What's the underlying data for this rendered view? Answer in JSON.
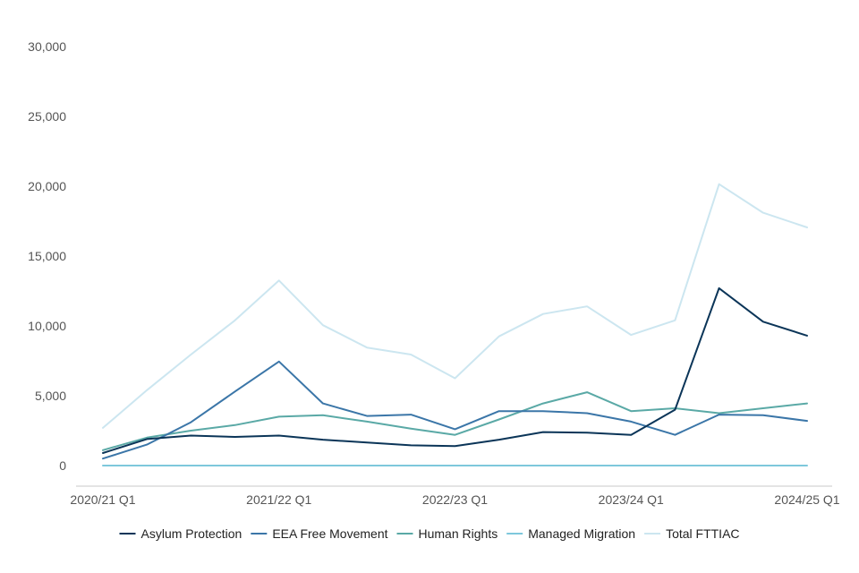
{
  "chart_data": {
    "type": "line",
    "title": "",
    "xlabel": "",
    "ylabel": "",
    "x": [
      "2020/21 Q1",
      "2020/21 Q2",
      "2020/21 Q3",
      "2020/21 Q4",
      "2021/22 Q1",
      "2021/22 Q2",
      "2021/22 Q3",
      "2021/22 Q4",
      "2022/23 Q1",
      "2022/23 Q2",
      "2022/23 Q3",
      "2022/23 Q4",
      "2023/24 Q1",
      "2023/24 Q2",
      "2023/24 Q3",
      "2023/24 Q4",
      "2024/25 Q1"
    ],
    "x_tick_labels": [
      "2020/21 Q1",
      "2021/22 Q1",
      "2022/23 Q1",
      "2023/24 Q1",
      "2024/25 Q1"
    ],
    "ylim": [
      0,
      30000
    ],
    "y_ticks": [
      0,
      5000,
      10000,
      15000,
      20000,
      25000,
      30000
    ],
    "y_tick_labels": [
      "0",
      "5,000",
      "10,000",
      "15,000",
      "20,000",
      "25,000",
      "30,000"
    ],
    "grid": false,
    "legend_position": "bottom",
    "series": [
      {
        "name": "Asylum Protection",
        "color": "#0b3558",
        "values": [
          900,
          1900,
          2150,
          2050,
          2150,
          1850,
          1650,
          1450,
          1400,
          1850,
          2400,
          2350,
          2200,
          4000,
          12700,
          10300,
          9300
        ]
      },
      {
        "name": "EEA Free Movement",
        "color": "#3b76a8",
        "values": [
          500,
          1500,
          3100,
          5300,
          7450,
          4450,
          3550,
          3650,
          2600,
          3900,
          3900,
          3750,
          3150,
          2200,
          3650,
          3600,
          3200
        ]
      },
      {
        "name": "Human Rights",
        "color": "#5aa9a6",
        "values": [
          1100,
          2000,
          2500,
          2900,
          3500,
          3600,
          3150,
          2650,
          2200,
          3300,
          4450,
          5250,
          3900,
          4100,
          3750,
          4100,
          4450
        ]
      },
      {
        "name": "Managed Migration",
        "color": "#7ec8dc",
        "values": [
          0,
          0,
          0,
          0,
          0,
          0,
          0,
          0,
          0,
          0,
          0,
          0,
          0,
          0,
          0,
          0,
          0
        ]
      },
      {
        "name": "Total FTTIAC",
        "color": "#cce6f0",
        "values": [
          2700,
          5400,
          7950,
          10400,
          13250,
          10050,
          8450,
          7950,
          6250,
          9250,
          10850,
          11400,
          9350,
          10400,
          20150,
          18100,
          17050
        ]
      }
    ]
  }
}
